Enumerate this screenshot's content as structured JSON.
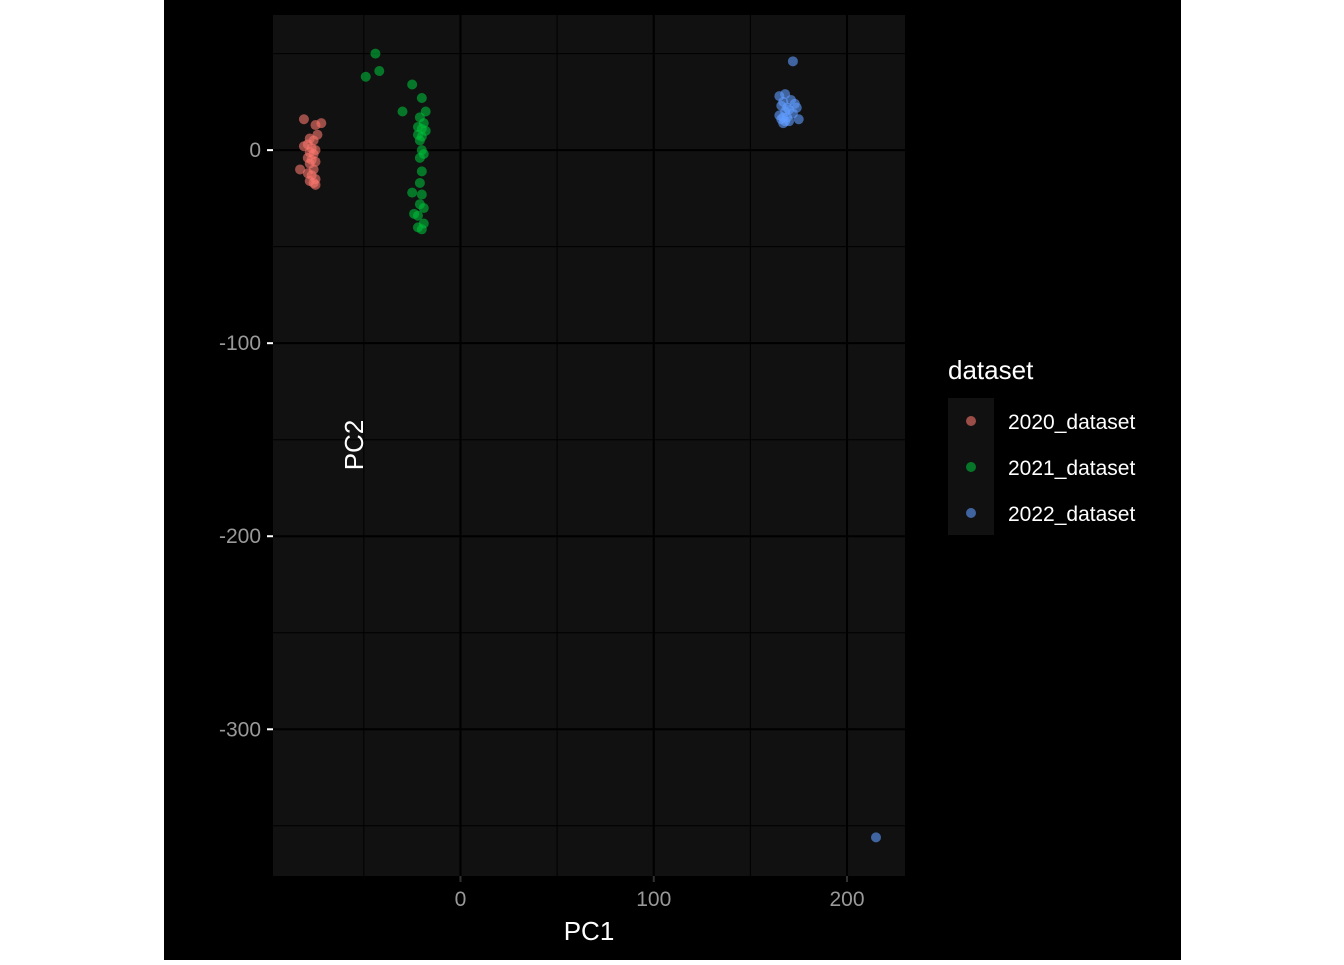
{
  "chart_data": {
    "type": "scatter",
    "xlabel": "PC1",
    "ylabel": "PC2",
    "xlim": [
      -97,
      230
    ],
    "ylim": [
      -376,
      70
    ],
    "x_ticks": [
      0,
      100,
      200
    ],
    "x_tick_labels": [
      "0",
      "100",
      "200"
    ],
    "y_ticks": [
      0,
      -100,
      -200,
      -300
    ],
    "y_tick_labels": [
      "0",
      "-100",
      "-200",
      "-300"
    ],
    "grid": true,
    "legend": {
      "title": "dataset",
      "placement": "right"
    },
    "series": [
      {
        "name": "2020_dataset",
        "color": "#F8766D",
        "points": [
          [
            -81,
            16
          ],
          [
            -75,
            13
          ],
          [
            -72,
            14
          ],
          [
            -74,
            8
          ],
          [
            -78,
            6
          ],
          [
            -76,
            5
          ],
          [
            -79,
            3
          ],
          [
            -81,
            2
          ],
          [
            -77,
            1
          ],
          [
            -75,
            0
          ],
          [
            -78,
            -1
          ],
          [
            -76,
            -2
          ],
          [
            -79,
            -4
          ],
          [
            -77,
            -5
          ],
          [
            -75,
            -6
          ],
          [
            -78,
            -7
          ],
          [
            -83,
            -10
          ],
          [
            -76,
            -10
          ],
          [
            -79,
            -12
          ],
          [
            -77,
            -13
          ],
          [
            -75,
            -15
          ],
          [
            -78,
            -16
          ],
          [
            -76,
            -17
          ],
          [
            -75,
            -18
          ]
        ]
      },
      {
        "name": "2021_dataset",
        "color": "#00BA38",
        "points": [
          [
            -44,
            50
          ],
          [
            -42,
            41
          ],
          [
            -49,
            38
          ],
          [
            -25,
            34
          ],
          [
            -20,
            27
          ],
          [
            -30,
            20
          ],
          [
            -18,
            20
          ],
          [
            -21,
            17
          ],
          [
            -19,
            14
          ],
          [
            -22,
            12
          ],
          [
            -20,
            11
          ],
          [
            -18,
            10
          ],
          [
            -22,
            8
          ],
          [
            -20,
            7
          ],
          [
            -21,
            5
          ],
          [
            -20,
            0
          ],
          [
            -19,
            -2
          ],
          [
            -21,
            -4
          ],
          [
            -20,
            -11
          ],
          [
            -21,
            -17
          ],
          [
            -25,
            -22
          ],
          [
            -20,
            -23
          ],
          [
            -21,
            -28
          ],
          [
            -19,
            -30
          ],
          [
            -24,
            -33
          ],
          [
            -22,
            -34
          ],
          [
            -19,
            -38
          ],
          [
            -22,
            -40
          ],
          [
            -20,
            -41
          ]
        ]
      },
      {
        "name": "2022_dataset",
        "color": "#619CFF",
        "points": [
          [
            172,
            46
          ],
          [
            165,
            28
          ],
          [
            168,
            29
          ],
          [
            171,
            26
          ],
          [
            167,
            25
          ],
          [
            173,
            24
          ],
          [
            166,
            23
          ],
          [
            169,
            22
          ],
          [
            174,
            22
          ],
          [
            170,
            21
          ],
          [
            168,
            20
          ],
          [
            172,
            19
          ],
          [
            165,
            18
          ],
          [
            167,
            17
          ],
          [
            169,
            17
          ],
          [
            175,
            16
          ],
          [
            166,
            16
          ],
          [
            168,
            15
          ],
          [
            170,
            15
          ],
          [
            167,
            14
          ],
          [
            215,
            -356
          ]
        ]
      }
    ]
  }
}
